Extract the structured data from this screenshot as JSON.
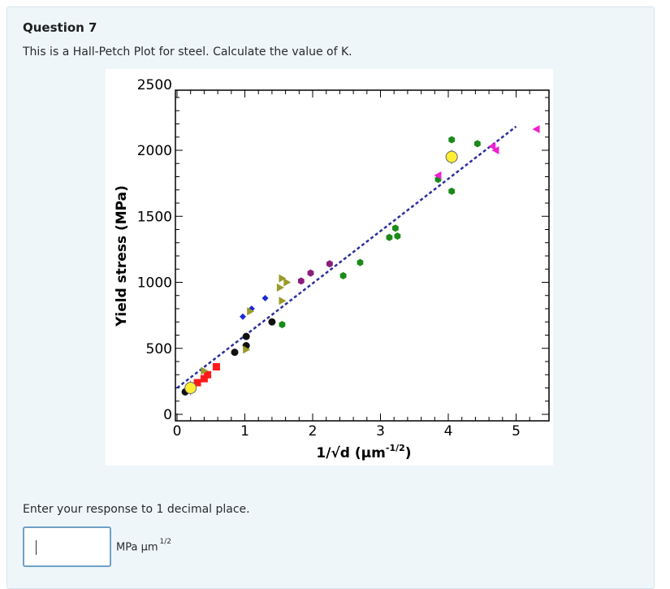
{
  "question": {
    "title": "Question 7",
    "text": "This is a Hall-Petch Plot for steel. Calculate the value of K."
  },
  "response": {
    "instruction": "Enter your response to 1 decimal place.",
    "input_value": "",
    "unit": "MPa µm",
    "unit_exponent": "1/2"
  },
  "chart_data": {
    "type": "scatter",
    "ylabel": "Yield stress (MPa)",
    "xlabel": "1/√d (µm",
    "xlabel_exp": "-1/2",
    "xlabel_close": ")",
    "xlim": [
      0,
      5.5
    ],
    "ylim": [
      0,
      2500
    ],
    "x_ticks": [
      0,
      1,
      2,
      3,
      4,
      5
    ],
    "y_ticks": [
      0,
      500,
      1000,
      1500,
      2000,
      2500
    ],
    "fit_line": {
      "x": [
        0,
        5.0
      ],
      "y": [
        200,
        2180
      ],
      "color": "#2b2f9e",
      "style": "dashed"
    },
    "series": [
      {
        "marker": "circle",
        "color": "#111111",
        "points": [
          [
            0.12,
            170
          ],
          [
            0.85,
            470
          ],
          [
            1.02,
            520
          ],
          [
            1.02,
            590
          ],
          [
            1.4,
            700
          ]
        ]
      },
      {
        "marker": "square",
        "color": "#ff1a1a",
        "points": [
          [
            0.3,
            240
          ],
          [
            0.4,
            270
          ],
          [
            0.45,
            300
          ],
          [
            0.58,
            360
          ]
        ]
      },
      {
        "marker": "diamond",
        "color": "#1a2bd6",
        "points": [
          [
            0.97,
            740
          ],
          [
            1.1,
            800
          ],
          [
            1.3,
            880
          ]
        ]
      },
      {
        "marker": "triangle-right",
        "color": "#9a9a2a",
        "points": [
          [
            1.02,
            490
          ],
          [
            1.08,
            780
          ],
          [
            1.52,
            960
          ],
          [
            1.55,
            1030
          ],
          [
            1.62,
            1000
          ],
          [
            1.55,
            860
          ],
          [
            0.4,
            330
          ]
        ]
      },
      {
        "marker": "hexagon",
        "color": "#8b1e7a",
        "points": [
          [
            1.83,
            1010
          ],
          [
            1.97,
            1070
          ],
          [
            2.25,
            1140
          ]
        ]
      },
      {
        "marker": "hexagon",
        "color": "#1a8a1a",
        "points": [
          [
            1.55,
            680
          ],
          [
            2.45,
            1050
          ],
          [
            2.7,
            1150
          ],
          [
            3.13,
            1340
          ],
          [
            3.25,
            1350
          ],
          [
            3.22,
            1410
          ],
          [
            3.85,
            1780
          ],
          [
            4.05,
            1690
          ],
          [
            4.05,
            2080
          ],
          [
            4.43,
            2050
          ]
        ]
      },
      {
        "marker": "triangle-left",
        "color": "#f020d0",
        "points": [
          [
            3.85,
            1810
          ],
          [
            4.7,
            2000
          ],
          [
            4.65,
            2030
          ],
          [
            5.3,
            2160
          ]
        ]
      },
      {
        "marker": "circle-large",
        "color": "#ffee33",
        "points": [
          [
            0.2,
            200
          ],
          [
            4.05,
            1950
          ]
        ]
      }
    ]
  }
}
